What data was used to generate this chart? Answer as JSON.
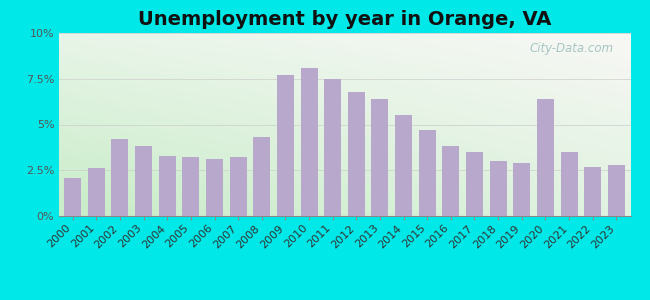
{
  "title": "Unemployment by year in Orange, VA",
  "years": [
    2000,
    2001,
    2002,
    2003,
    2004,
    2005,
    2006,
    2007,
    2008,
    2009,
    2010,
    2011,
    2012,
    2013,
    2014,
    2015,
    2016,
    2017,
    2018,
    2019,
    2020,
    2021,
    2022,
    2023
  ],
  "values": [
    2.1,
    2.6,
    4.2,
    3.8,
    3.3,
    3.2,
    3.1,
    3.2,
    4.3,
    7.7,
    8.1,
    7.5,
    6.8,
    6.4,
    5.5,
    4.7,
    3.8,
    3.5,
    3.0,
    2.9,
    6.4,
    3.5,
    2.7,
    2.8
  ],
  "bar_color": "#b8a8cc",
  "background_outer": "#00e8e8",
  "background_inner_topleft": "#e8f5e8",
  "background_inner_topright": "#f5f5f0",
  "background_inner_bottomleft": "#d0edd0",
  "background_inner_bottomright": "#eef5ee",
  "ylim": [
    0,
    10
  ],
  "yticks": [
    0,
    2.5,
    5.0,
    7.5,
    10.0
  ],
  "ytick_labels": [
    "0%",
    "2.5%",
    "5%",
    "7.5%",
    "10%"
  ],
  "title_fontsize": 14,
  "tick_fontsize": 8,
  "watermark_text": "City-Data.com",
  "grid_color": "#cccccc",
  "axis_color": "#999999"
}
